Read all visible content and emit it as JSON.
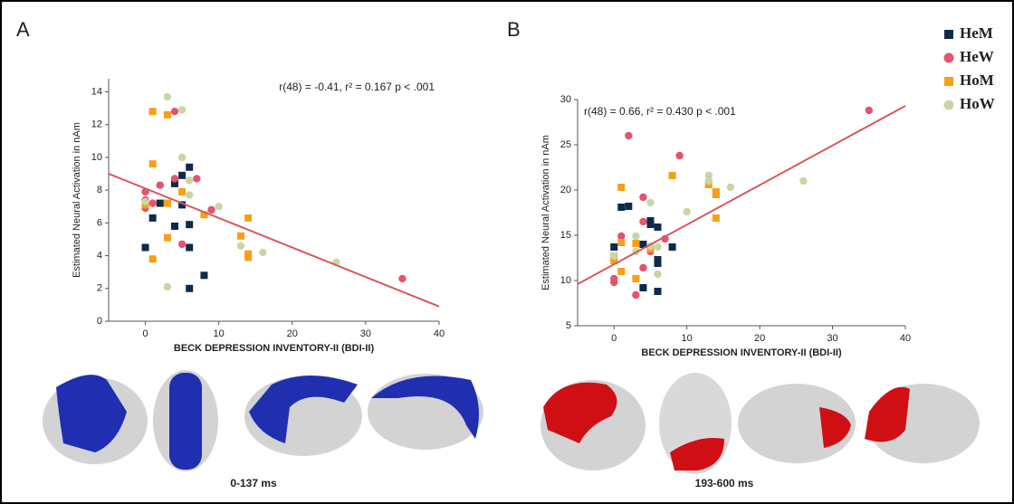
{
  "chart_data": [
    {
      "type": "scatter",
      "panel_label": "A",
      "caption": "0-137 ms",
      "annotation": "r(48) = -0.41, r² = 0.167 p < .001",
      "x_label": "BECK DEPRESSION INVENTORY-II (BDI-II)",
      "y_label": "Estimated Neural Activation in nAm",
      "xlim": [
        -5,
        40
      ],
      "xticks": [
        0,
        10,
        20,
        30,
        40
      ],
      "ylim": [
        0,
        14.8
      ],
      "yticks": [
        0,
        2,
        4,
        6,
        8,
        10,
        12,
        14
      ],
      "trendline": {
        "color": "#d9575c",
        "x": [
          -5,
          40
        ],
        "y": [
          9.0,
          0.9
        ]
      },
      "series": [
        {
          "name": "HeM",
          "color": "#0d2a4a",
          "marker": "square",
          "x": [
            0,
            1,
            2,
            4,
            4,
            5,
            6,
            6,
            6,
            8,
            6,
            5
          ],
          "y": [
            4.5,
            6.3,
            7.2,
            5.8,
            8.4,
            8.9,
            9.4,
            5.9,
            4.5,
            2.8,
            2.0,
            7.1
          ]
        },
        {
          "name": "HeW",
          "color": "#e5536f",
          "marker": "circle",
          "x": [
            0,
            0,
            0,
            1,
            2,
            4,
            4,
            5,
            7,
            9,
            35
          ],
          "y": [
            7.9,
            7.4,
            6.9,
            7.2,
            8.3,
            12.8,
            8.7,
            4.7,
            8.7,
            6.8,
            2.6
          ]
        },
        {
          "name": "HoM",
          "color": "#f5a016",
          "marker": "square",
          "x": [
            1,
            3,
            1,
            1,
            3,
            3,
            5,
            8,
            13,
            14,
            14,
            14,
            0
          ],
          "y": [
            12.8,
            12.6,
            9.6,
            3.8,
            5.1,
            7.2,
            7.9,
            6.5,
            5.2,
            6.3,
            4.1,
            3.9,
            7.1
          ]
        },
        {
          "name": "HoW",
          "color": "#c8d6a6",
          "marker": "circle",
          "x": [
            3,
            5,
            5,
            6,
            6,
            10,
            13,
            16,
            26,
            3,
            0
          ],
          "y": [
            13.7,
            12.9,
            10.0,
            7.7,
            8.6,
            7.0,
            4.6,
            4.2,
            3.6,
            2.1,
            7.3
          ]
        }
      ]
    },
    {
      "type": "scatter",
      "panel_label": "B",
      "caption": "193-600 ms",
      "annotation": "r(48) = 0.66, r² = 0.430 p < .001",
      "x_label": "BECK DEPRESSION INVENTORY-II (BDI-II)",
      "y_label": "Estimated Neural Activation in nAm",
      "xlim": [
        -5,
        40
      ],
      "xticks": [
        0,
        10,
        20,
        30,
        40
      ],
      "ylim": [
        5,
        30
      ],
      "yticks": [
        5,
        10,
        15,
        20,
        25,
        30
      ],
      "trendline": {
        "color": "#d9575c",
        "x": [
          -5,
          40
        ],
        "y": [
          9.6,
          29.3
        ]
      },
      "series": [
        {
          "name": "HeM",
          "color": "#0d2a4a",
          "marker": "square",
          "x": [
            0,
            1,
            2,
            4,
            4,
            5,
            5,
            6,
            6,
            6,
            6,
            8
          ],
          "y": [
            13.7,
            18.1,
            18.2,
            14.0,
            9.2,
            16.6,
            16.2,
            15.9,
            12.3,
            11.9,
            8.8,
            13.7
          ]
        },
        {
          "name": "HeW",
          "color": "#e5536f",
          "marker": "circle",
          "x": [
            0,
            0,
            1,
            2,
            3,
            4,
            4,
            4,
            5,
            7,
            9,
            35
          ],
          "y": [
            10.2,
            9.8,
            14.9,
            26.0,
            8.4,
            19.2,
            16.5,
            11.4,
            13.2,
            14.6,
            23.8,
            28.8
          ]
        },
        {
          "name": "HoM",
          "color": "#f5a016",
          "marker": "square",
          "x": [
            0,
            0,
            1,
            1,
            1,
            3,
            3,
            5,
            8,
            13,
            14,
            14,
            14
          ],
          "y": [
            12.7,
            12.2,
            20.3,
            14.2,
            11.0,
            14.1,
            10.2,
            13.5,
            21.6,
            20.6,
            19.8,
            19.5,
            16.9
          ]
        },
        {
          "name": "HoW",
          "color": "#c8d6a6",
          "marker": "circle",
          "x": [
            0,
            3,
            3,
            5,
            5,
            6,
            6,
            10,
            13,
            13,
            16,
            26
          ],
          "y": [
            12.7,
            14.9,
            13.2,
            18.6,
            13.8,
            13.7,
            10.7,
            17.6,
            21.6,
            21.0,
            20.3,
            21.0
          ]
        }
      ]
    }
  ]
}
